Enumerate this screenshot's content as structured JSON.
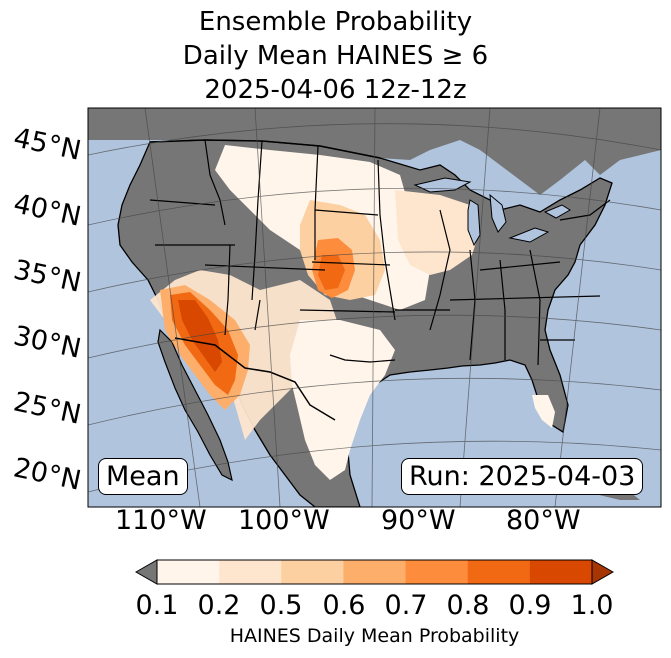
{
  "title": {
    "line1": "Ensemble Probability",
    "line2": "Daily Mean HAINES ≥ 6",
    "line3": "2025-04-06 12z-12z"
  },
  "map": {
    "lat_labels": [
      "45°N",
      "40°N",
      "35°N",
      "30°N",
      "25°N",
      "20°N"
    ],
    "lon_labels": [
      "110°W",
      "100°W",
      "90°W",
      "80°W"
    ],
    "mean_label": "Mean",
    "run_label": "Run: 2025-04-03",
    "colors": {
      "ocean": "#b0c4de",
      "land": "#767676",
      "lakes": "#b0c4de"
    }
  },
  "colorbar": {
    "ticks": [
      "0.1",
      "0.2",
      "0.5",
      "0.6",
      "0.7",
      "0.8",
      "0.9",
      "1.0"
    ],
    "colors": [
      "#fff5eb",
      "#fee6ce",
      "#fdd0a2",
      "#fdae6b",
      "#fd8d3c",
      "#f16913",
      "#d94801"
    ],
    "under_color": "#767676",
    "over_color": "#a63603",
    "label": "HAINES Daily Mean Probability"
  }
}
